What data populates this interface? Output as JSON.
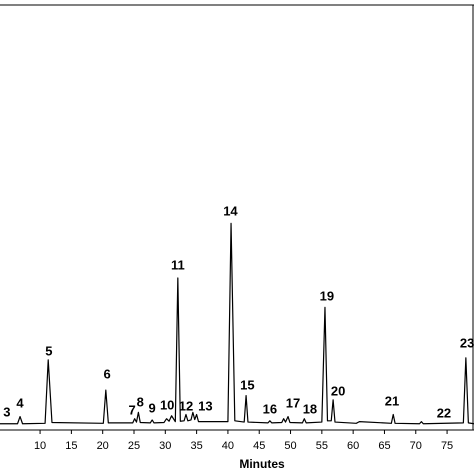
{
  "chart_data": {
    "type": "line",
    "x_label": "Minutes",
    "xlim": [
      3.6,
      79.3
    ],
    "ylim": [
      0,
      100
    ],
    "xticks": [
      10,
      15,
      20,
      25,
      30,
      35,
      40,
      45,
      50,
      55,
      60,
      65,
      70,
      75
    ],
    "series": [
      {
        "color": "#000000",
        "x": [
          3.6,
          6.4,
          6.8,
          7.2,
          10.8,
          11.3,
          11.9,
          20.1,
          20.5,
          20.9,
          24.8,
          25.1,
          25.4,
          25.7,
          26.0,
          27.6,
          27.9,
          28.2,
          29.8,
          30.2,
          30.6,
          31.0,
          31.6,
          32.0,
          32.4,
          33.0,
          33.3,
          33.6,
          34.1,
          34.4,
          34.7,
          35.0,
          35.3,
          40.0,
          40.5,
          41.1,
          42.6,
          42.9,
          43.2,
          46.4,
          46.7,
          47.0,
          48.6,
          48.9,
          49.2,
          49.6,
          49.9,
          51.9,
          52.2,
          52.5,
          55.0,
          55.5,
          55.9,
          56.5,
          56.8,
          57.1,
          60.5,
          61.0,
          66.1,
          66.4,
          66.7,
          70.6,
          70.9,
          71.2,
          77.6,
          78.0,
          78.4,
          79.3
        ],
        "values": [
          0.3,
          0.3,
          2,
          0.3,
          0.4,
          15.5,
          0.6,
          0.4,
          8.3,
          0.5,
          0.5,
          1.5,
          0.7,
          3,
          0.6,
          0.5,
          1.2,
          0.5,
          0.6,
          1.5,
          0.9,
          2.2,
          0.8,
          35,
          0.9,
          1,
          2.5,
          1,
          1.2,
          3,
          1.3,
          2.5,
          0.8,
          0.8,
          48,
          1,
          0.7,
          7,
          0.7,
          0.5,
          1,
          0.5,
          0.6,
          1.5,
          0.7,
          2,
          0.6,
          0.5,
          1.5,
          0.5,
          0.7,
          28,
          1,
          1,
          6,
          0.7,
          0.4,
          0.8,
          0.4,
          2.5,
          0.4,
          0.3,
          0.8,
          0.3,
          0.5,
          16,
          0.5,
          0.3
        ]
      }
    ],
    "annotations": [
      {
        "text": "3",
        "x": 4.7,
        "y": 2.9
      },
      {
        "text": "4",
        "x": 6.8,
        "y": 5.0
      },
      {
        "text": "5",
        "x": 11.4,
        "y": 17.4
      },
      {
        "text": "6",
        "x": 20.7,
        "y": 11.9
      },
      {
        "text": "7",
        "x": 24.7,
        "y": 3.3
      },
      {
        "text": "8",
        "x": 26.0,
        "y": 5.2
      },
      {
        "text": "9",
        "x": 27.9,
        "y": 3.8
      },
      {
        "text": "10",
        "x": 30.3,
        "y": 4.5
      },
      {
        "text": "11",
        "x": 32.0,
        "y": 37.9
      },
      {
        "text": "12",
        "x": 33.3,
        "y": 4.3
      },
      {
        "text": "13",
        "x": 36.4,
        "y": 4.3
      },
      {
        "text": "14",
        "x": 40.4,
        "y": 50.7
      },
      {
        "text": "15",
        "x": 43.1,
        "y": 9.3
      },
      {
        "text": "16",
        "x": 46.7,
        "y": 3.6
      },
      {
        "text": "17",
        "x": 50.4,
        "y": 5.0
      },
      {
        "text": "18",
        "x": 53.1,
        "y": 3.6
      },
      {
        "text": "19",
        "x": 55.8,
        "y": 30.5
      },
      {
        "text": "20",
        "x": 57.6,
        "y": 7.9
      },
      {
        "text": "21",
        "x": 66.2,
        "y": 5.5
      },
      {
        "text": "22",
        "x": 74.5,
        "y": 2.6
      },
      {
        "text": "23",
        "x": 78.2,
        "y": 19.3
      }
    ]
  }
}
